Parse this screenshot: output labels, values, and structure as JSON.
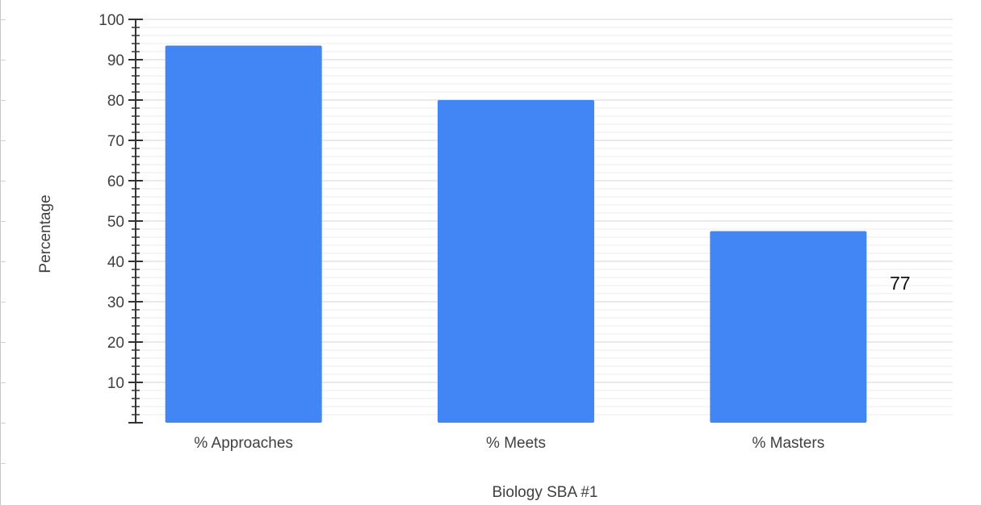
{
  "chart_data": {
    "type": "bar",
    "categories": [
      "% Approaches",
      "% Meets",
      "% Masters"
    ],
    "values": [
      93.5,
      80,
      47.5
    ],
    "xlabel": "Biology SBA #1",
    "ylabel": "Percentage",
    "ylim": [
      0,
      100
    ],
    "yticks": [
      10,
      20,
      30,
      40,
      50,
      60,
      70,
      80,
      90,
      100
    ],
    "grid": true,
    "bar_color": "#4285f4"
  },
  "annotation": {
    "text": "77"
  }
}
